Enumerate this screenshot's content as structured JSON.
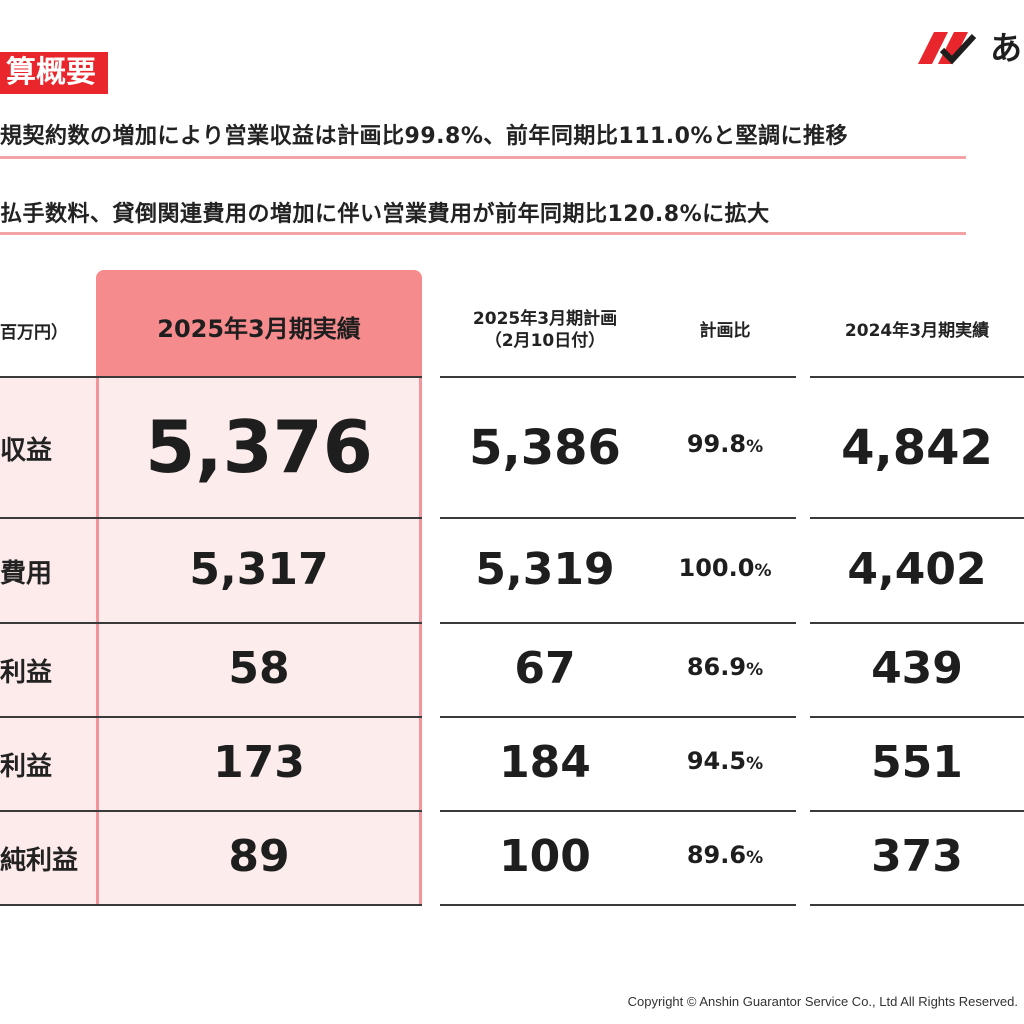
{
  "header": {
    "title": "算概要",
    "logo_text": "あ"
  },
  "bullets": [
    "規契約数の増加により営業収益は計画比99.8%、前年同期比111.0%と堅調に推移",
    "払手数料、貸倒関連費用の増加に伴い営業費用が前年同期比120.8%に拡大"
  ],
  "table": {
    "unit": "百万円）",
    "columns": {
      "actual_2025": "2025年3月期実績",
      "plan_2025_line1": "2025年3月期計画",
      "plan_2025_line2": "（2月10日付）",
      "ratio": "計画比",
      "actual_2024": "2024年3月期実績"
    },
    "rows": [
      {
        "label": "収益",
        "actual_2025": "5,376",
        "plan_2025": "5,386",
        "ratio": "99.8",
        "actual_2024": "4,842"
      },
      {
        "label": "費用",
        "actual_2025": "5,317",
        "plan_2025": "5,319",
        "ratio": "100.0",
        "actual_2024": "4,402"
      },
      {
        "label": "利益",
        "actual_2025": "58",
        "plan_2025": "67",
        "ratio": "86.9",
        "actual_2024": "439"
      },
      {
        "label": "利益",
        "actual_2025": "173",
        "plan_2025": "184",
        "ratio": "94.5",
        "actual_2024": "551"
      },
      {
        "label": "純利益",
        "actual_2025": "89",
        "plan_2025": "100",
        "ratio": "89.6",
        "actual_2024": "373"
      }
    ],
    "percent_sign": "%"
  },
  "footer": {
    "copyright": "Copyright © Anshin Guarantor Service Co., Ltd All Rights Reserved."
  },
  "colors": {
    "accent_red": "#e8262b",
    "highlight_header": "#f68b8e",
    "highlight_body": "#fdecec",
    "underline_pink": "#f4a3a5"
  }
}
